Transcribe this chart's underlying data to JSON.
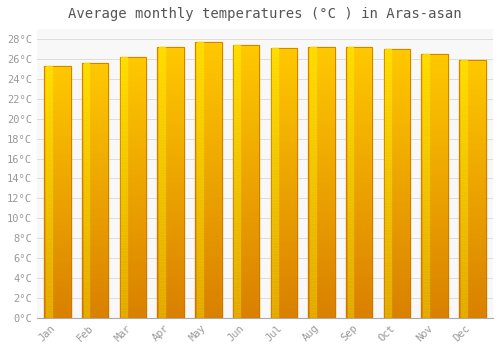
{
  "title": "Average monthly temperatures (°C ) in Aras-asan",
  "months": [
    "Jan",
    "Feb",
    "Mar",
    "Apr",
    "May",
    "Jun",
    "Jul",
    "Aug",
    "Sep",
    "Oct",
    "Nov",
    "Dec"
  ],
  "temperatures": [
    25.3,
    25.6,
    26.2,
    27.2,
    27.7,
    27.4,
    27.1,
    27.2,
    27.2,
    27.0,
    26.5,
    25.9
  ],
  "bar_color_top": "#FFAA00",
  "bar_color_bottom": "#FF8C00",
  "bar_color_highlight": "#FFD870",
  "bar_edge_color": "#CC7700",
  "ylim": [
    0,
    29
  ],
  "ytick_max": 28,
  "ytick_step": 2,
  "background_color": "#ffffff",
  "plot_bg_color": "#f8f8f8",
  "grid_color": "#dddddd",
  "title_fontsize": 10,
  "tick_fontsize": 7.5,
  "title_color": "#555555",
  "tick_color": "#999999"
}
